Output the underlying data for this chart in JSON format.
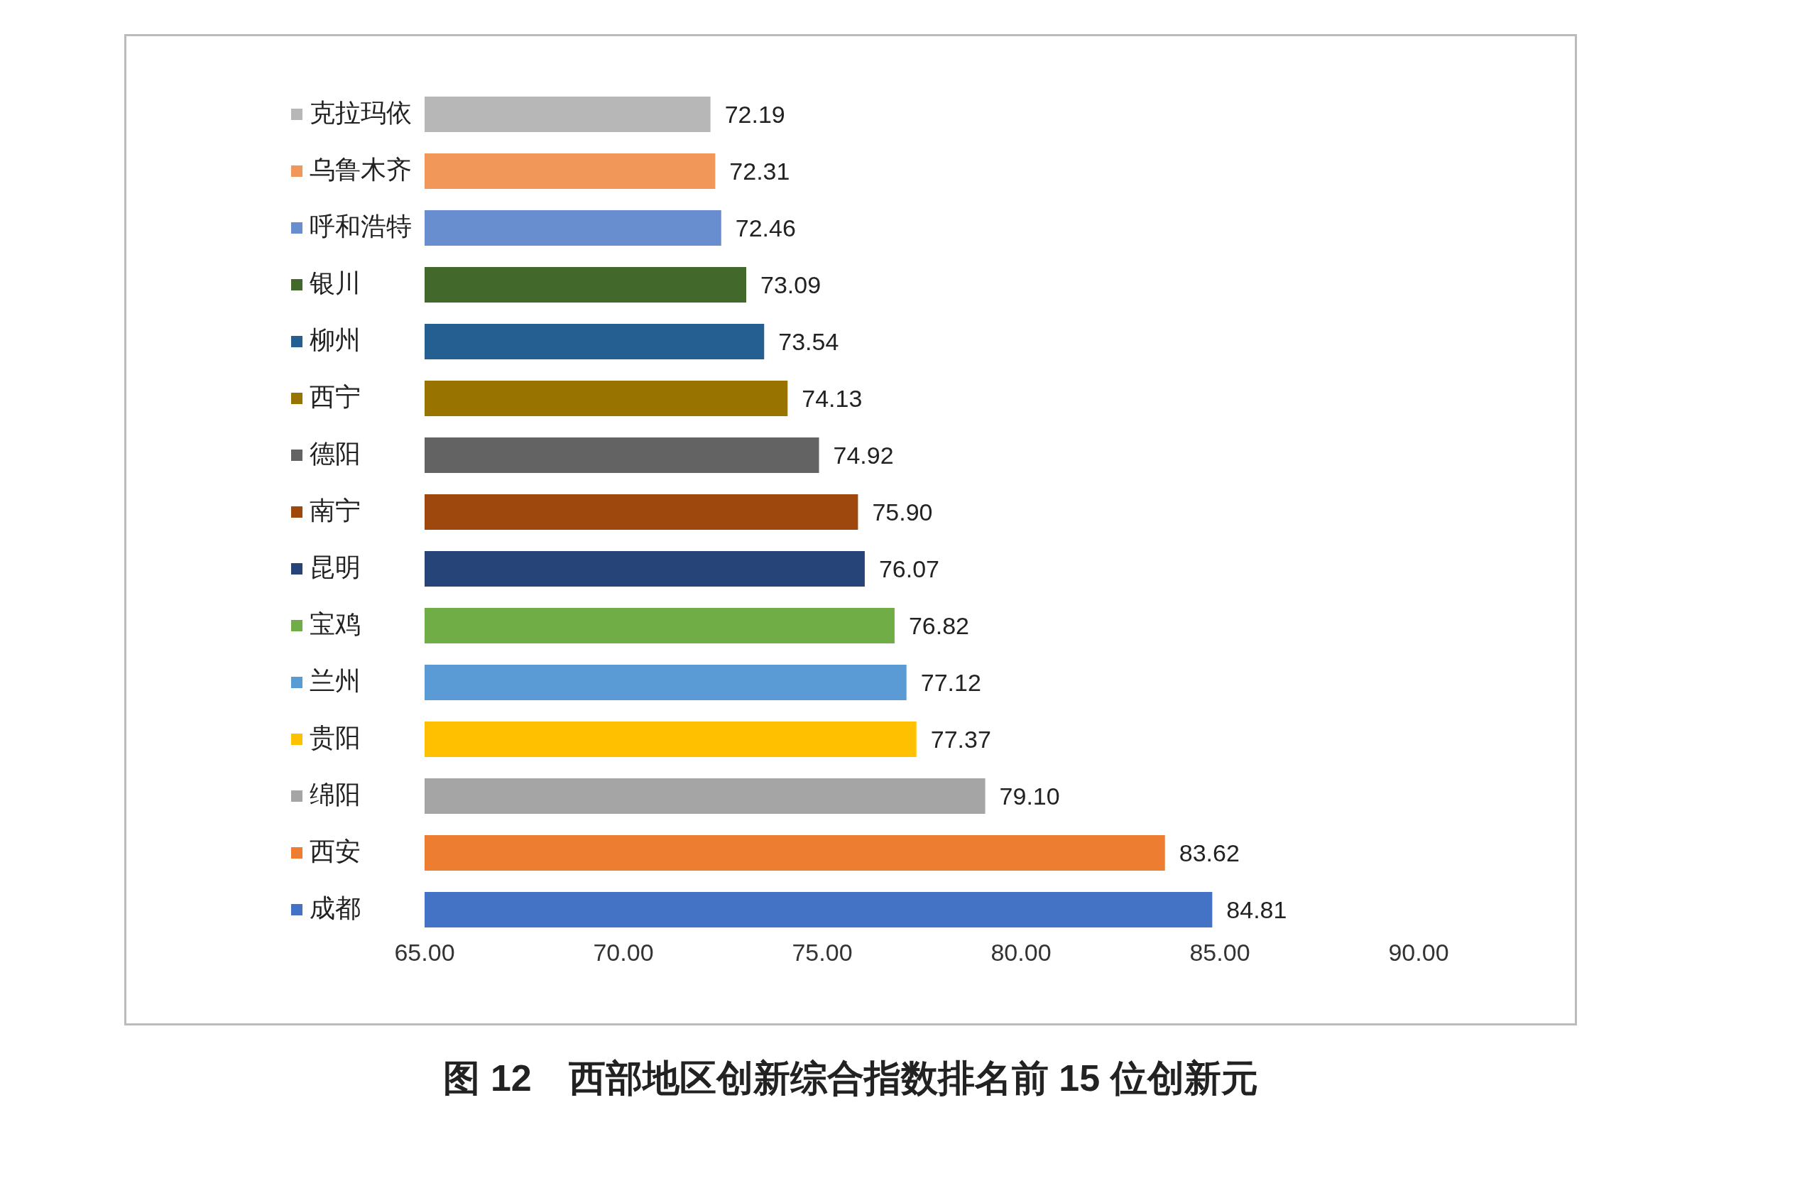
{
  "chart_data": {
    "type": "bar",
    "orientation": "horizontal",
    "title": "图 12　西部地区创新综合指数排名前 15 位创新元",
    "categories": [
      "克拉玛依",
      "乌鲁木齐",
      "呼和浩特",
      "银川",
      "柳州",
      "西宁",
      "德阳",
      "南宁",
      "昆明",
      "宝鸡",
      "兰州",
      "贵阳",
      "绵阳",
      "西安",
      "成都"
    ],
    "values": [
      72.19,
      72.31,
      72.46,
      73.09,
      73.54,
      74.13,
      74.92,
      75.9,
      76.07,
      76.82,
      77.12,
      77.37,
      79.1,
      83.62,
      84.81
    ],
    "value_labels": [
      "72.19",
      "72.31",
      "72.46",
      "73.09",
      "73.54",
      "74.13",
      "74.92",
      "75.90",
      "76.07",
      "76.82",
      "77.12",
      "77.37",
      "79.10",
      "83.62",
      "84.81"
    ],
    "colors": [
      "#b7b7b7",
      "#f1975a",
      "#698ed0",
      "#43682b",
      "#255e91",
      "#997300",
      "#636363",
      "#9e480e",
      "#264478",
      "#70ad47",
      "#5b9bd5",
      "#ffc000",
      "#a5a5a5",
      "#ed7d31",
      "#4472c4"
    ],
    "xlim": [
      65,
      90
    ],
    "xticks": [
      {
        "value": 65,
        "label": "65.00"
      },
      {
        "value": 70,
        "label": "70.00"
      },
      {
        "value": 75,
        "label": "75.00"
      },
      {
        "value": 80,
        "label": "80.00"
      },
      {
        "value": 85,
        "label": "85.00"
      },
      {
        "value": 90,
        "label": "90.00"
      }
    ],
    "grid": false
  }
}
